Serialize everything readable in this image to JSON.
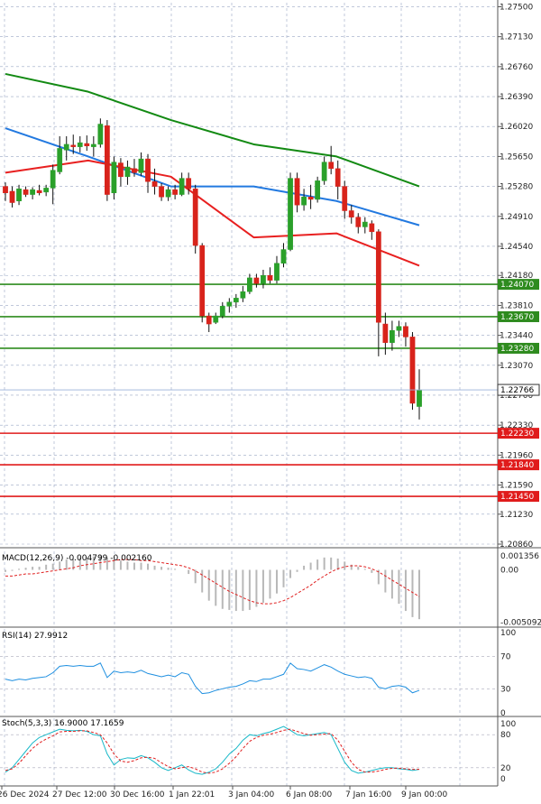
{
  "chart_data": {
    "type": "candlestick",
    "price_axis": {
      "ticks": [
        "1.27500",
        "1.27130",
        "1.26760",
        "1.26390",
        "1.26020",
        "1.25650",
        "1.25280",
        "1.24910",
        "1.24540",
        "1.24180",
        "1.23810",
        "1.23440",
        "1.23070",
        "1.22700",
        "1.22330",
        "1.21960",
        "1.21590",
        "1.21230",
        "1.20860"
      ],
      "ylim": [
        1.2086,
        1.2755
      ]
    },
    "time_labels": [
      "26 Dec 2024",
      "27 Dec 12:00",
      "30 Dec 16:00",
      "1 Jan 22:01",
      "3 Jan 04:00",
      "6 Jan 08:00",
      "7 Jan 16:00",
      "9 Jan 00:00"
    ],
    "current_price": "1.22766",
    "support_resistance": [
      {
        "label": "1.24070",
        "value": 1.2407,
        "color": "#2e8b1e"
      },
      {
        "label": "1.23670",
        "value": 1.2367,
        "color": "#2e8b1e"
      },
      {
        "label": "1.23280",
        "value": 1.2328,
        "color": "#2e8b1e"
      },
      {
        "label": "1.22230",
        "value": 1.2223,
        "color": "#e01b1b"
      },
      {
        "label": "1.21840",
        "value": 1.2184,
        "color": "#e01b1b"
      },
      {
        "label": "1.21450",
        "value": 1.2145,
        "color": "#e01b1b"
      }
    ],
    "candles": [
      [
        1.2528,
        1.2533,
        1.251,
        1.252
      ],
      [
        1.2522,
        1.2528,
        1.2502,
        1.2508
      ],
      [
        1.251,
        1.253,
        1.2505,
        1.2525
      ],
      [
        1.2524,
        1.2528,
        1.2515,
        1.2518
      ],
      [
        1.2518,
        1.2527,
        1.2512,
        1.2524
      ],
      [
        1.2523,
        1.253,
        1.2517,
        1.252
      ],
      [
        1.2521,
        1.253,
        1.2516,
        1.2526
      ],
      [
        1.2526,
        1.2555,
        1.2506,
        1.2548
      ],
      [
        1.2546,
        1.259,
        1.2543,
        1.2575
      ],
      [
        1.2573,
        1.259,
        1.256,
        1.258
      ],
      [
        1.2579,
        1.2592,
        1.2568,
        1.2577
      ],
      [
        1.2577,
        1.259,
        1.257,
        1.2582
      ],
      [
        1.2581,
        1.2591,
        1.2572,
        1.2578
      ],
      [
        1.2577,
        1.259,
        1.2565,
        1.258
      ],
      [
        1.258,
        1.2612,
        1.2576,
        1.2605
      ],
      [
        1.2603,
        1.261,
        1.251,
        1.2518
      ],
      [
        1.252,
        1.2565,
        1.2512,
        1.2558
      ],
      [
        1.2557,
        1.2563,
        1.2528,
        1.254
      ],
      [
        1.254,
        1.256,
        1.253,
        1.2552
      ],
      [
        1.255,
        1.2562,
        1.254,
        1.2545
      ],
      [
        1.2545,
        1.257,
        1.2541,
        1.2562
      ],
      [
        1.2562,
        1.2568,
        1.252,
        1.2534
      ],
      [
        1.2534,
        1.255,
        1.2518,
        1.2528
      ],
      [
        1.2528,
        1.2532,
        1.251,
        1.2515
      ],
      [
        1.2515,
        1.2528,
        1.251,
        1.2524
      ],
      [
        1.2524,
        1.253,
        1.2512,
        1.2518
      ],
      [
        1.2518,
        1.2545,
        1.2516,
        1.2538
      ],
      [
        1.2538,
        1.2545,
        1.2518,
        1.2525
      ],
      [
        1.2525,
        1.253,
        1.2445,
        1.2455
      ],
      [
        1.2455,
        1.2458,
        1.236,
        1.2368
      ],
      [
        1.2368,
        1.2372,
        1.2348,
        1.2358
      ],
      [
        1.236,
        1.2372,
        1.2358,
        1.2368
      ],
      [
        1.2368,
        1.2385,
        1.2365,
        1.238
      ],
      [
        1.238,
        1.239,
        1.2372,
        1.2385
      ],
      [
        1.2385,
        1.2395,
        1.2378,
        1.239
      ],
      [
        1.239,
        1.2405,
        1.2385,
        1.2398
      ],
      [
        1.2398,
        1.242,
        1.2395,
        1.2415
      ],
      [
        1.2415,
        1.242,
        1.2403,
        1.2408
      ],
      [
        1.2408,
        1.2425,
        1.2402,
        1.2418
      ],
      [
        1.2418,
        1.2428,
        1.2408,
        1.2412
      ],
      [
        1.2412,
        1.2442,
        1.2408,
        1.2433
      ],
      [
        1.2433,
        1.2458,
        1.2428,
        1.245
      ],
      [
        1.245,
        1.2545,
        1.2448,
        1.2538
      ],
      [
        1.2538,
        1.2545,
        1.2496,
        1.2505
      ],
      [
        1.2505,
        1.2525,
        1.2498,
        1.2515
      ],
      [
        1.2515,
        1.253,
        1.25,
        1.2512
      ],
      [
        1.2512,
        1.254,
        1.2508,
        1.2535
      ],
      [
        1.2535,
        1.2565,
        1.253,
        1.2558
      ],
      [
        1.2558,
        1.2578,
        1.2543,
        1.255
      ],
      [
        1.255,
        1.256,
        1.2512,
        1.2528
      ],
      [
        1.2528,
        1.2535,
        1.2488,
        1.2498
      ],
      [
        1.2498,
        1.2505,
        1.2482,
        1.249
      ],
      [
        1.249,
        1.2495,
        1.247,
        1.2478
      ],
      [
        1.2478,
        1.249,
        1.247,
        1.2484
      ],
      [
        1.2482,
        1.2486,
        1.2462,
        1.2472
      ],
      [
        1.2472,
        1.2475,
        1.2318,
        1.236
      ],
      [
        1.2358,
        1.2372,
        1.232,
        1.2335
      ],
      [
        1.2335,
        1.2362,
        1.2325,
        1.235
      ],
      [
        1.235,
        1.2362,
        1.2342,
        1.2355
      ],
      [
        1.2355,
        1.236,
        1.233,
        1.2342
      ],
      [
        1.2342,
        1.2348,
        1.2252,
        1.226
      ],
      [
        1.2256,
        1.2302,
        1.224,
        1.2276
      ]
    ],
    "moving_averages": [
      {
        "color": "#138a13",
        "values": [
          1.2667,
          1.2645,
          1.261,
          1.258,
          1.2565,
          1.2528
        ]
      },
      {
        "color": "#2279e0",
        "values": [
          1.26,
          1.2565,
          1.2528,
          1.2528,
          1.251,
          1.248
        ]
      },
      {
        "color": "#e82020",
        "values": [
          1.2545,
          1.256,
          1.254,
          1.2465,
          1.247,
          1.243
        ]
      }
    ],
    "macd": {
      "label": "MACD(12,26,9) -0.004799 -0.002160",
      "ticks": [
        "0.001356",
        "0.00",
        "-0.005092"
      ],
      "ylim": [
        -0.0054,
        0.0018
      ],
      "histogram": [
        -0.0002,
        -0.0001,
        0.0001,
        0.0002,
        0.0003,
        0.0003,
        0.0005,
        0.0006,
        0.0008,
        0.001,
        0.0011,
        0.0012,
        0.0012,
        0.0013,
        0.0014,
        0.0012,
        0.001,
        0.0009,
        0.0008,
        0.0007,
        0.0007,
        0.0006,
        0.0004,
        0.0003,
        0.0002,
        0.0001,
        0.0,
        -0.0004,
        -0.0013,
        -0.0022,
        -0.003,
        -0.0035,
        -0.0038,
        -0.0039,
        -0.004,
        -0.004,
        -0.0039,
        -0.0036,
        -0.0032,
        -0.0028,
        -0.0023,
        -0.0017,
        -0.0008,
        -0.0002,
        0.0004,
        0.0007,
        0.001,
        0.0012,
        0.0012,
        0.0011,
        0.0008,
        0.0005,
        0.0003,
        0.0001,
        -0.0003,
        -0.0014,
        -0.0022,
        -0.0028,
        -0.0033,
        -0.004,
        -0.0046,
        -0.0048
      ],
      "signal": [
        -0.0006,
        -0.0006,
        -0.0005,
        -0.0004,
        -0.0004,
        -0.0003,
        -0.0002,
        -0.0001,
        0.0,
        0.0001,
        0.0002,
        0.0004,
        0.0005,
        0.0006,
        0.0007,
        0.0008,
        0.0009,
        0.001,
        0.001,
        0.001,
        0.0009,
        0.0009,
        0.0008,
        0.0007,
        0.0006,
        0.0005,
        0.0004,
        0.0002,
        -0.0001,
        -0.0005,
        -0.0009,
        -0.0013,
        -0.0017,
        -0.0021,
        -0.0024,
        -0.0027,
        -0.003,
        -0.0032,
        -0.0033,
        -0.0033,
        -0.0032,
        -0.003,
        -0.0027,
        -0.0023,
        -0.0019,
        -0.0015,
        -0.001,
        -0.0006,
        -0.0002,
        0.0001,
        0.0003,
        0.0004,
        0.0004,
        0.0003,
        0.0001,
        -0.0002,
        -0.0006,
        -0.001,
        -0.0014,
        -0.0018,
        -0.0022,
        -0.0026
      ]
    },
    "rsi": {
      "label": "RSI(14) 27.9912",
      "ticks": [
        "100",
        "70",
        "30",
        "0"
      ],
      "ylim": [
        0,
        100
      ],
      "values": [
        42,
        40,
        42,
        41,
        43,
        44,
        45,
        50,
        58,
        59,
        58,
        59,
        58,
        58,
        62,
        44,
        52,
        50,
        51,
        50,
        53,
        49,
        47,
        45,
        47,
        45,
        50,
        48,
        33,
        24,
        25,
        28,
        30,
        32,
        33,
        36,
        40,
        39,
        42,
        42,
        45,
        48,
        62,
        55,
        54,
        52,
        56,
        60,
        57,
        52,
        48,
        46,
        44,
        45,
        43,
        32,
        30,
        33,
        34,
        32,
        25,
        27.99
      ]
    },
    "stoch": {
      "label": "Stoch(5,3,3) 16.9000 17.1659",
      "ticks": [
        "100",
        "80",
        "20",
        "0"
      ],
      "ylim": [
        0,
        100
      ],
      "k": [
        12,
        20,
        35,
        50,
        65,
        75,
        80,
        85,
        90,
        88,
        87,
        88,
        86,
        80,
        78,
        45,
        25,
        35,
        38,
        37,
        42,
        38,
        30,
        20,
        15,
        20,
        25,
        16,
        10,
        8,
        12,
        18,
        30,
        45,
        55,
        70,
        80,
        78,
        82,
        85,
        90,
        95,
        88,
        80,
        78,
        80,
        82,
        84,
        80,
        55,
        30,
        15,
        10,
        12,
        15,
        18,
        20,
        20,
        18,
        17,
        15,
        16.9
      ],
      "d": [
        15,
        18,
        28,
        42,
        55,
        65,
        72,
        78,
        85,
        86,
        86,
        87,
        87,
        84,
        80,
        65,
        45,
        32,
        30,
        33,
        38,
        39,
        37,
        29,
        22,
        18,
        20,
        22,
        18,
        12,
        10,
        12,
        18,
        28,
        40,
        55,
        68,
        75,
        79,
        81,
        84,
        88,
        90,
        86,
        82,
        79,
        80,
        81,
        82,
        70,
        50,
        30,
        17,
        12,
        12,
        14,
        17,
        19,
        19,
        18,
        17,
        17.17
      ]
    }
  }
}
